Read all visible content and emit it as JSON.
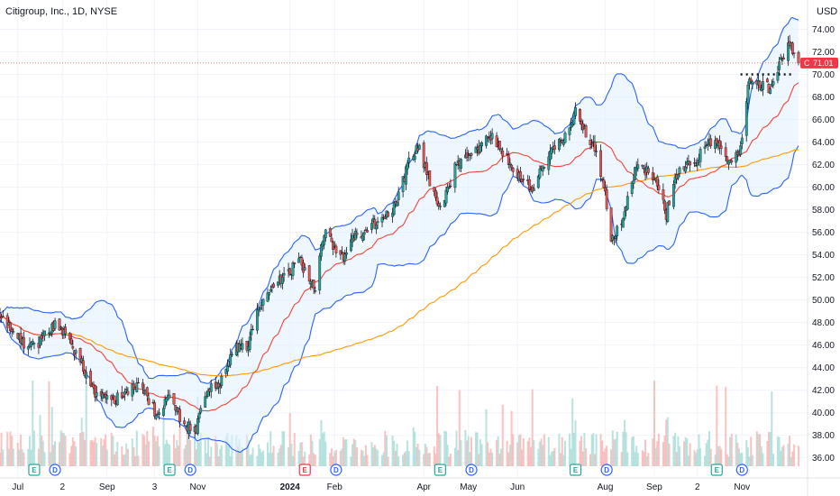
{
  "header": {
    "title": "Citigroup, Inc., 1D, NYSE",
    "currency": "USD"
  },
  "chart_data": {
    "type": "candlestick",
    "title": "Citigroup, Inc., 1D, NYSE",
    "currency": "USD",
    "ylim": [
      35.5,
      75.0
    ],
    "y_ticks": [
      "74.00",
      "72.00",
      "70.00",
      "68.00",
      "66.00",
      "64.00",
      "62.00",
      "60.00",
      "58.00",
      "56.00",
      "54.00",
      "52.00",
      "50.00",
      "48.00",
      "46.00",
      "44.00",
      "42.00",
      "40.00",
      "38.00",
      "36.00"
    ],
    "x_range": [
      "2023-06-21",
      "2024-12-09"
    ],
    "x_ticks": [
      {
        "label": "Jul",
        "date": "2023-07-03"
      },
      {
        "label": "2",
        "date": "2023-08-02"
      },
      {
        "label": "Sep",
        "date": "2023-09-01"
      },
      {
        "label": "3",
        "date": "2023-10-03"
      },
      {
        "label": "Nov",
        "date": "2023-11-01"
      },
      {
        "label": "2024",
        "date": "2024-01-02",
        "bold": true
      },
      {
        "label": "Feb",
        "date": "2024-02-01"
      },
      {
        "label": "Apr",
        "date": "2024-04-01"
      },
      {
        "label": "May",
        "date": "2024-05-01"
      },
      {
        "label": "Jun",
        "date": "2024-06-03"
      },
      {
        "label": "Aug",
        "date": "2024-08-01"
      },
      {
        "label": "Sep",
        "date": "2024-09-03"
      },
      {
        "label": "2",
        "date": "2024-10-02"
      },
      {
        "label": "Nov",
        "date": "2024-11-01"
      }
    ],
    "last_price": {
      "label": "C",
      "value": "71.01"
    },
    "colors": {
      "up": "#26a69a",
      "down": "#ef5350",
      "sma_fast": "#f44336",
      "sma_slow": "#ff9800",
      "bands": "#2962ff",
      "band_fill": "#e3f2fd",
      "volume_up": "#a7dcd7",
      "volume_down": "#f7b4b3"
    },
    "price_keypoints": [
      [
        "2023-06-21",
        48.5
      ],
      [
        "2023-07-03",
        46.5
      ],
      [
        "2023-07-14",
        45.8
      ],
      [
        "2023-07-28",
        47.8
      ],
      [
        "2023-08-04",
        47.0
      ],
      [
        "2023-08-14",
        44.6
      ],
      [
        "2023-08-25",
        41.6
      ],
      [
        "2023-09-05",
        41.2
      ],
      [
        "2023-09-14",
        41.6
      ],
      [
        "2023-09-22",
        42.8
      ],
      [
        "2023-10-03",
        40.2
      ],
      [
        "2023-10-13",
        41.2
      ],
      [
        "2023-10-23",
        39.0
      ],
      [
        "2023-10-31",
        38.6
      ],
      [
        "2023-11-07",
        41.8
      ],
      [
        "2023-11-15",
        42.5
      ],
      [
        "2023-11-27",
        45.8
      ],
      [
        "2023-12-05",
        46.0
      ],
      [
        "2023-12-14",
        50.0
      ],
      [
        "2023-12-27",
        51.8
      ],
      [
        "2024-01-08",
        53.5
      ],
      [
        "2024-01-19",
        51.0
      ],
      [
        "2024-01-25",
        56.2
      ],
      [
        "2024-02-05",
        53.5
      ],
      [
        "2024-02-14",
        55.5
      ],
      [
        "2024-02-28",
        56.8
      ],
      [
        "2024-03-14",
        58.6
      ],
      [
        "2024-03-21",
        61.8
      ],
      [
        "2024-03-28",
        63.6
      ],
      [
        "2024-04-12",
        57.8
      ],
      [
        "2024-04-22",
        61.8
      ],
      [
        "2024-05-06",
        63.0
      ],
      [
        "2024-05-15",
        64.6
      ],
      [
        "2024-05-30",
        61.8
      ],
      [
        "2024-06-13",
        60.0
      ],
      [
        "2024-06-24",
        62.6
      ],
      [
        "2024-07-03",
        64.2
      ],
      [
        "2024-07-12",
        66.6
      ],
      [
        "2024-07-22",
        64.2
      ],
      [
        "2024-07-26",
        63.0
      ],
      [
        "2024-08-01",
        59.2
      ],
      [
        "2024-08-05",
        55.0
      ],
      [
        "2024-08-12",
        57.0
      ],
      [
        "2024-08-22",
        61.8
      ],
      [
        "2024-09-03",
        61.0
      ],
      [
        "2024-09-11",
        57.6
      ],
      [
        "2024-09-19",
        61.6
      ],
      [
        "2024-10-01",
        62.4
      ],
      [
        "2024-10-10",
        63.8
      ],
      [
        "2024-10-16",
        64.0
      ],
      [
        "2024-10-23",
        62.5
      ],
      [
        "2024-10-31",
        63.6
      ],
      [
        "2024-11-06",
        69.6
      ],
      [
        "2024-11-12",
        69.0
      ],
      [
        "2024-11-20",
        68.8
      ],
      [
        "2024-11-27",
        71.0
      ],
      [
        "2024-12-03",
        72.6
      ],
      [
        "2024-12-09",
        71.01
      ]
    ],
    "events": [
      {
        "type": "E",
        "date": "2023-07-14"
      },
      {
        "type": "D",
        "date": "2023-07-28"
      },
      {
        "type": "E",
        "date": "2023-10-13"
      },
      {
        "type": "D",
        "date": "2023-10-27"
      },
      {
        "type": "E",
        "date": "2024-01-12",
        "negative": true
      },
      {
        "type": "D",
        "date": "2024-02-02"
      },
      {
        "type": "E",
        "date": "2024-04-12"
      },
      {
        "type": "D",
        "date": "2024-05-03"
      },
      {
        "type": "E",
        "date": "2024-07-12"
      },
      {
        "type": "D",
        "date": "2024-08-02"
      },
      {
        "type": "E",
        "date": "2024-10-15"
      },
      {
        "type": "D",
        "date": "2024-11-01"
      }
    ],
    "annotations": [
      {
        "type": "dotted-resistance",
        "from": "2024-10-31",
        "to": "2024-12-05",
        "value": 70.0
      }
    ],
    "grid": true
  }
}
